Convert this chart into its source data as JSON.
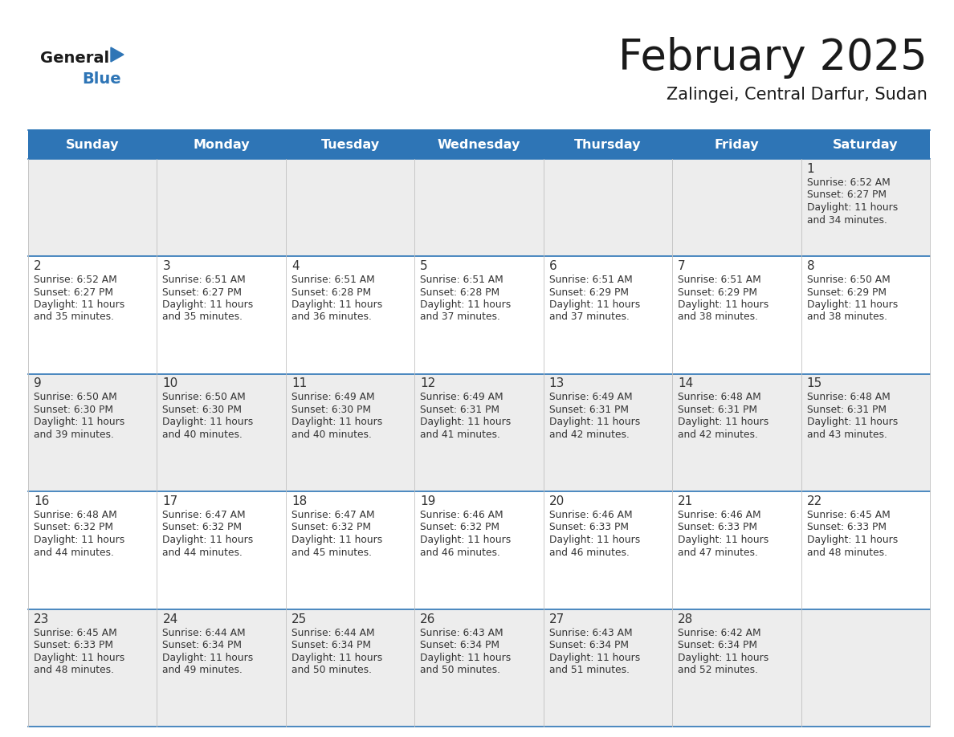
{
  "title": "February 2025",
  "subtitle": "Zalingei, Central Darfur, Sudan",
  "header_bg": "#2E75B6",
  "header_text_color": "#FFFFFF",
  "cell_bg_light": "#EDEDED",
  "cell_bg_white": "#FFFFFF",
  "day_names": [
    "Sunday",
    "Monday",
    "Tuesday",
    "Wednesday",
    "Thursday",
    "Friday",
    "Saturday"
  ],
  "days": [
    {
      "day": 1,
      "col": 6,
      "row": 0,
      "sunrise": "6:52 AM",
      "sunset": "6:27 PM",
      "daylight": "Daylight: 11 hours",
      "daylight2": "and 34 minutes."
    },
    {
      "day": 2,
      "col": 0,
      "row": 1,
      "sunrise": "6:52 AM",
      "sunset": "6:27 PM",
      "daylight": "Daylight: 11 hours",
      "daylight2": "and 35 minutes."
    },
    {
      "day": 3,
      "col": 1,
      "row": 1,
      "sunrise": "6:51 AM",
      "sunset": "6:27 PM",
      "daylight": "Daylight: 11 hours",
      "daylight2": "and 35 minutes."
    },
    {
      "day": 4,
      "col": 2,
      "row": 1,
      "sunrise": "6:51 AM",
      "sunset": "6:28 PM",
      "daylight": "Daylight: 11 hours",
      "daylight2": "and 36 minutes."
    },
    {
      "day": 5,
      "col": 3,
      "row": 1,
      "sunrise": "6:51 AM",
      "sunset": "6:28 PM",
      "daylight": "Daylight: 11 hours",
      "daylight2": "and 37 minutes."
    },
    {
      "day": 6,
      "col": 4,
      "row": 1,
      "sunrise": "6:51 AM",
      "sunset": "6:29 PM",
      "daylight": "Daylight: 11 hours",
      "daylight2": "and 37 minutes."
    },
    {
      "day": 7,
      "col": 5,
      "row": 1,
      "sunrise": "6:51 AM",
      "sunset": "6:29 PM",
      "daylight": "Daylight: 11 hours",
      "daylight2": "and 38 minutes."
    },
    {
      "day": 8,
      "col": 6,
      "row": 1,
      "sunrise": "6:50 AM",
      "sunset": "6:29 PM",
      "daylight": "Daylight: 11 hours",
      "daylight2": "and 38 minutes."
    },
    {
      "day": 9,
      "col": 0,
      "row": 2,
      "sunrise": "6:50 AM",
      "sunset": "6:30 PM",
      "daylight": "Daylight: 11 hours",
      "daylight2": "and 39 minutes."
    },
    {
      "day": 10,
      "col": 1,
      "row": 2,
      "sunrise": "6:50 AM",
      "sunset": "6:30 PM",
      "daylight": "Daylight: 11 hours",
      "daylight2": "and 40 minutes."
    },
    {
      "day": 11,
      "col": 2,
      "row": 2,
      "sunrise": "6:49 AM",
      "sunset": "6:30 PM",
      "daylight": "Daylight: 11 hours",
      "daylight2": "and 40 minutes."
    },
    {
      "day": 12,
      "col": 3,
      "row": 2,
      "sunrise": "6:49 AM",
      "sunset": "6:31 PM",
      "daylight": "Daylight: 11 hours",
      "daylight2": "and 41 minutes."
    },
    {
      "day": 13,
      "col": 4,
      "row": 2,
      "sunrise": "6:49 AM",
      "sunset": "6:31 PM",
      "daylight": "Daylight: 11 hours",
      "daylight2": "and 42 minutes."
    },
    {
      "day": 14,
      "col": 5,
      "row": 2,
      "sunrise": "6:48 AM",
      "sunset": "6:31 PM",
      "daylight": "Daylight: 11 hours",
      "daylight2": "and 42 minutes."
    },
    {
      "day": 15,
      "col": 6,
      "row": 2,
      "sunrise": "6:48 AM",
      "sunset": "6:31 PM",
      "daylight": "Daylight: 11 hours",
      "daylight2": "and 43 minutes."
    },
    {
      "day": 16,
      "col": 0,
      "row": 3,
      "sunrise": "6:48 AM",
      "sunset": "6:32 PM",
      "daylight": "Daylight: 11 hours",
      "daylight2": "and 44 minutes."
    },
    {
      "day": 17,
      "col": 1,
      "row": 3,
      "sunrise": "6:47 AM",
      "sunset": "6:32 PM",
      "daylight": "Daylight: 11 hours",
      "daylight2": "and 44 minutes."
    },
    {
      "day": 18,
      "col": 2,
      "row": 3,
      "sunrise": "6:47 AM",
      "sunset": "6:32 PM",
      "daylight": "Daylight: 11 hours",
      "daylight2": "and 45 minutes."
    },
    {
      "day": 19,
      "col": 3,
      "row": 3,
      "sunrise": "6:46 AM",
      "sunset": "6:32 PM",
      "daylight": "Daylight: 11 hours",
      "daylight2": "and 46 minutes."
    },
    {
      "day": 20,
      "col": 4,
      "row": 3,
      "sunrise": "6:46 AM",
      "sunset": "6:33 PM",
      "daylight": "Daylight: 11 hours",
      "daylight2": "and 46 minutes."
    },
    {
      "day": 21,
      "col": 5,
      "row": 3,
      "sunrise": "6:46 AM",
      "sunset": "6:33 PM",
      "daylight": "Daylight: 11 hours",
      "daylight2": "and 47 minutes."
    },
    {
      "day": 22,
      "col": 6,
      "row": 3,
      "sunrise": "6:45 AM",
      "sunset": "6:33 PM",
      "daylight": "Daylight: 11 hours",
      "daylight2": "and 48 minutes."
    },
    {
      "day": 23,
      "col": 0,
      "row": 4,
      "sunrise": "6:45 AM",
      "sunset": "6:33 PM",
      "daylight": "Daylight: 11 hours",
      "daylight2": "and 48 minutes."
    },
    {
      "day": 24,
      "col": 1,
      "row": 4,
      "sunrise": "6:44 AM",
      "sunset": "6:34 PM",
      "daylight": "Daylight: 11 hours",
      "daylight2": "and 49 minutes."
    },
    {
      "day": 25,
      "col": 2,
      "row": 4,
      "sunrise": "6:44 AM",
      "sunset": "6:34 PM",
      "daylight": "Daylight: 11 hours",
      "daylight2": "and 50 minutes."
    },
    {
      "day": 26,
      "col": 3,
      "row": 4,
      "sunrise": "6:43 AM",
      "sunset": "6:34 PM",
      "daylight": "Daylight: 11 hours",
      "daylight2": "and 50 minutes."
    },
    {
      "day": 27,
      "col": 4,
      "row": 4,
      "sunrise": "6:43 AM",
      "sunset": "6:34 PM",
      "daylight": "Daylight: 11 hours",
      "daylight2": "and 51 minutes."
    },
    {
      "day": 28,
      "col": 5,
      "row": 4,
      "sunrise": "6:42 AM",
      "sunset": "6:34 PM",
      "daylight": "Daylight: 11 hours",
      "daylight2": "and 52 minutes."
    }
  ],
  "num_rows": 5,
  "num_cols": 7,
  "header_bg_color": "#2E75B6",
  "cell_line_color": "#2E75B6",
  "title_color": "#1a1a1a",
  "subtitle_color": "#1a1a1a",
  "day_number_color": "#333333",
  "cell_text_color": "#333333",
  "logo_color_general": "#1a1a1a",
  "logo_color_blue": "#2E75B6",
  "logo_triangle_color": "#2E75B6"
}
